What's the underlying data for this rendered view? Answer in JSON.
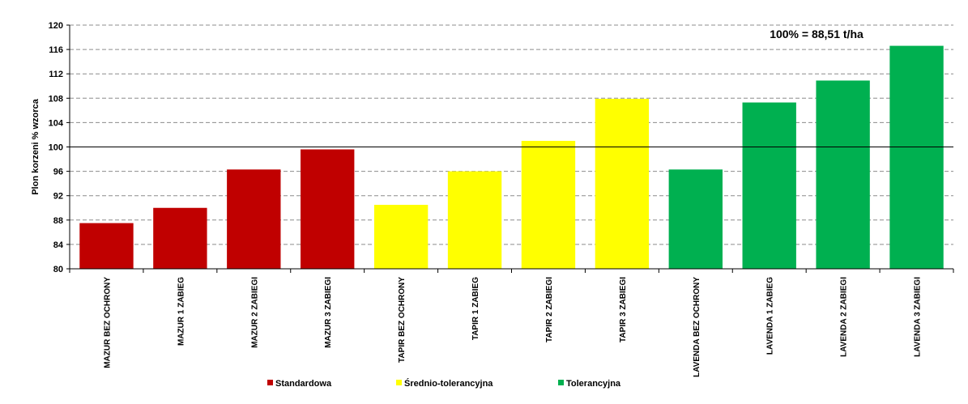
{
  "chart_data": {
    "type": "bar",
    "ylabel": "Plon korzeni % wzorca",
    "xlabel": "",
    "ylim": [
      80,
      120
    ],
    "yticks": [
      80,
      84,
      88,
      92,
      96,
      100,
      104,
      108,
      112,
      116,
      120
    ],
    "grid": true,
    "reference_line": 100,
    "annotation": "100% = 88,51 t/ha",
    "legend_position": "bottom",
    "categories": [
      "MAZUR BEZ OCHRONY",
      "MAZUR 1 ZABIEG",
      "MAZUR 2 ZABIEGI",
      "MAZUR 3 ZABIEGI",
      "TAPIR BEZ OCHRONY",
      "TAPIR 1 ZABIEG",
      "TAPIR 2 ZABIEGI",
      "TAPIR 3 ZABIEGI",
      "LAVENDA BEZ OCHRONY",
      "LAVENDA 1 ZABIEG",
      "LAVENDA 2 ZABIEGI",
      "LAVENDA 3 ZABIEGI"
    ],
    "values": [
      87.5,
      90.0,
      96.3,
      99.6,
      90.5,
      96.0,
      101.0,
      107.9,
      96.3,
      107.3,
      110.9,
      116.6
    ],
    "groups": [
      0,
      0,
      0,
      0,
      1,
      1,
      1,
      1,
      2,
      2,
      2,
      2
    ],
    "legend": [
      {
        "name": "Standardowa",
        "color": "#C00000"
      },
      {
        "name": "Średnio-tolerancyjna",
        "color": "#FFFF00"
      },
      {
        "name": "Tolerancyjna",
        "color": "#00B050"
      }
    ]
  }
}
